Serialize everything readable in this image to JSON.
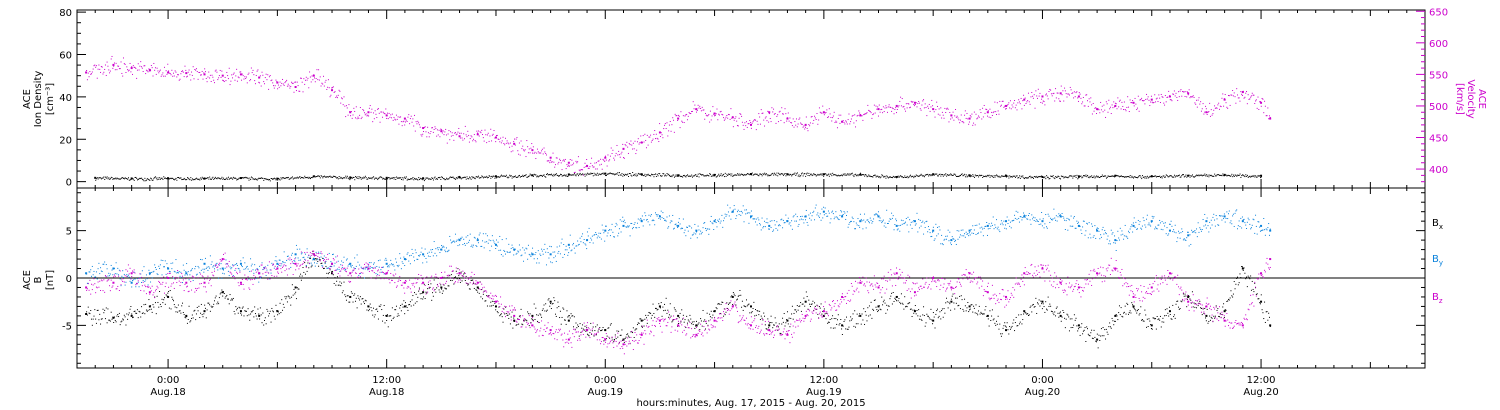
{
  "chart_data": [
    {
      "type": "scatter",
      "panel": "top",
      "ylabel_left": [
        "ACE",
        "Ion Density",
        "[cm⁻³]"
      ],
      "ylabel_right": [
        "ACE",
        "Velocity",
        "[km/s]"
      ],
      "ylim_left": [
        -3,
        81
      ],
      "yticks_left": [
        0,
        20,
        40,
        60,
        80
      ],
      "ylim_right": [
        370,
        652
      ],
      "yticks_right": [
        400,
        450,
        500,
        550,
        600,
        650
      ],
      "grid": false,
      "series": [
        {
          "axis": "left",
          "color": "#000000",
          "x_hours": [
            -4,
            -2,
            0,
            2,
            4,
            6,
            8,
            10,
            12,
            14,
            16,
            18,
            20,
            22,
            24,
            26,
            28,
            30,
            32,
            34,
            36,
            38,
            40,
            42,
            44,
            46,
            48,
            50,
            52,
            54,
            56,
            58,
            60
          ],
          "values": [
            1.8,
            1.5,
            1.6,
            1.5,
            1.7,
            1.4,
            2.5,
            2.0,
            1.8,
            1.6,
            2.0,
            2.5,
            3.0,
            3.4,
            3.8,
            3.5,
            3.0,
            3.2,
            3.6,
            3.5,
            3.5,
            3.3,
            2.2,
            3.5,
            3.0,
            2.8,
            2.2,
            2.5,
            2.8,
            2.5,
            2.8,
            3.2,
            2.8
          ]
        },
        {
          "axis": "right",
          "color": "#cc00cc",
          "x_hours": [
            -4.5,
            -3,
            -2,
            -1,
            0,
            1,
            2,
            3,
            4,
            5,
            6,
            7,
            8,
            9,
            10,
            11,
            12,
            13,
            14,
            15,
            16,
            17,
            18,
            19,
            20,
            21,
            22,
            23,
            24,
            25,
            26,
            27,
            28,
            29,
            30,
            31,
            32,
            33,
            34,
            35,
            36,
            37,
            38,
            39,
            40,
            41,
            42,
            43,
            44,
            45,
            46,
            47,
            48,
            49,
            50,
            51,
            52,
            53,
            54,
            55,
            56,
            57,
            58,
            59,
            60,
            60.5
          ],
          "values": [
            553,
            565,
            560,
            557,
            553,
            552,
            550,
            548,
            550,
            545,
            537,
            530,
            548,
            525,
            490,
            490,
            485,
            480,
            465,
            460,
            452,
            455,
            450,
            440,
            430,
            418,
            410,
            405,
            418,
            432,
            442,
            458,
            480,
            495,
            488,
            482,
            470,
            490,
            480,
            470,
            490,
            475,
            485,
            495,
            500,
            505,
            495,
            485,
            480,
            490,
            500,
            510,
            515,
            520,
            515,
            495,
            500,
            505,
            510,
            515,
            520,
            490,
            510,
            522,
            505,
            480
          ]
        }
      ]
    },
    {
      "type": "scatter",
      "panel": "bottom",
      "ylabel_left": [
        "ACE",
        "B",
        "[nT]"
      ],
      "ylim": [
        -9.5,
        9.5
      ],
      "yticks": [
        -5,
        0,
        5
      ],
      "zero_line": true,
      "legend": "right",
      "grid": false,
      "series": [
        {
          "name": "Bx",
          "color": "#000000",
          "x_hours": [
            -4.5,
            -3,
            -2,
            -1,
            0,
            1,
            2,
            3,
            4,
            5,
            6,
            7,
            8,
            9,
            10,
            11,
            12,
            13,
            14,
            15,
            16,
            17,
            18,
            19,
            20,
            21,
            22,
            23,
            24,
            25,
            26,
            27,
            28,
            29,
            30,
            31,
            32,
            33,
            34,
            35,
            36,
            37,
            38,
            39,
            40,
            41,
            42,
            43,
            44,
            45,
            46,
            47,
            48,
            49,
            50,
            51,
            52,
            53,
            54,
            55,
            56,
            57,
            58,
            59,
            60,
            60.5
          ],
          "values": [
            -3.8,
            -4.2,
            -4.0,
            -3.0,
            -2.0,
            -4.0,
            -3.5,
            -1.5,
            -3.5,
            -4.0,
            -3.5,
            -1.0,
            2.5,
            0.5,
            -2.0,
            -3.0,
            -4.0,
            -3.0,
            -1.5,
            -1.0,
            0.5,
            -1.0,
            -3.0,
            -4.5,
            -4.0,
            -2.5,
            -4.5,
            -5.5,
            -5.5,
            -6.5,
            -4.5,
            -3.0,
            -4.0,
            -5.0,
            -3.5,
            -2.0,
            -3.0,
            -5.0,
            -4.5,
            -2.5,
            -4.0,
            -5.0,
            -4.0,
            -3.0,
            -2.0,
            -3.5,
            -4.5,
            -2.5,
            -3.0,
            -4.0,
            -5.5,
            -3.5,
            -2.5,
            -4.0,
            -5.0,
            -6.5,
            -4.0,
            -3.0,
            -5.0,
            -3.5,
            -2.0,
            -4.0,
            -3.5,
            1.0,
            -2.5,
            -5.0
          ]
        },
        {
          "name": "By",
          "color": "#0a82dc",
          "x_hours": [
            -4.5,
            -3,
            -2,
            -1,
            0,
            1,
            2,
            3,
            4,
            5,
            6,
            7,
            8,
            9,
            10,
            11,
            12,
            13,
            14,
            15,
            16,
            17,
            18,
            19,
            20,
            21,
            22,
            23,
            24,
            25,
            26,
            27,
            28,
            29,
            30,
            31,
            32,
            33,
            34,
            35,
            36,
            37,
            38,
            39,
            40,
            41,
            42,
            43,
            44,
            45,
            46,
            47,
            48,
            49,
            50,
            51,
            52,
            53,
            54,
            55,
            56,
            57,
            58,
            59,
            60,
            60.5
          ],
          "values": [
            0.5,
            1.0,
            -0.5,
            0.5,
            1.0,
            0.5,
            1.5,
            1.0,
            1.5,
            0.5,
            1.5,
            2.5,
            2.0,
            1.5,
            1.5,
            1.0,
            1.5,
            2.0,
            2.5,
            3.0,
            4.0,
            4.0,
            3.5,
            3.0,
            2.5,
            2.5,
            3.5,
            4.0,
            5.0,
            5.5,
            6.0,
            6.5,
            5.5,
            5.0,
            6.0,
            7.0,
            6.5,
            5.5,
            6.0,
            6.5,
            7.0,
            6.5,
            6.0,
            6.5,
            5.5,
            6.0,
            5.0,
            4.0,
            5.0,
            5.5,
            6.0,
            6.5,
            6.0,
            6.5,
            5.5,
            5.0,
            4.0,
            5.5,
            6.0,
            5.0,
            4.5,
            6.0,
            6.5,
            6.0,
            5.5,
            5.0
          ]
        },
        {
          "name": "Bz",
          "color": "#cc00cc",
          "x_hours": [
            -4.5,
            -3,
            -2,
            -1,
            0,
            1,
            2,
            3,
            4,
            5,
            6,
            7,
            8,
            9,
            10,
            11,
            12,
            13,
            14,
            15,
            16,
            17,
            18,
            19,
            20,
            21,
            22,
            23,
            24,
            25,
            26,
            27,
            28,
            29,
            30,
            31,
            32,
            33,
            34,
            35,
            36,
            37,
            38,
            39,
            40,
            41,
            42,
            43,
            44,
            45,
            46,
            47,
            48,
            49,
            50,
            51,
            52,
            53,
            54,
            55,
            56,
            57,
            58,
            59,
            60,
            60.5
          ],
          "values": [
            -1.0,
            -0.5,
            0.5,
            -1.5,
            0.0,
            -0.5,
            -0.5,
            2.0,
            -0.5,
            0.5,
            1.0,
            1.5,
            2.5,
            1.5,
            0.5,
            1.0,
            0.5,
            -0.5,
            -0.5,
            0.0,
            0.5,
            -0.5,
            -2.5,
            -4.0,
            -5.0,
            -5.5,
            -6.5,
            -5.5,
            -6.5,
            -7.0,
            -6.0,
            -4.5,
            -5.0,
            -6.0,
            -4.5,
            -3.0,
            -5.0,
            -5.5,
            -6.0,
            -4.0,
            -3.5,
            -2.0,
            -0.5,
            -1.0,
            0.5,
            -1.5,
            0.0,
            -1.0,
            0.5,
            -1.5,
            -2.0,
            0.5,
            1.0,
            -0.5,
            -1.0,
            0.5,
            1.0,
            -2.0,
            -1.0,
            0.5,
            -2.5,
            -3.0,
            -4.5,
            -5.0,
            0.5,
            2.0
          ]
        }
      ],
      "legend_entries": [
        {
          "main": "B",
          "sub": "x",
          "color": "#000000"
        },
        {
          "main": "B",
          "sub": "y",
          "color": "#0a82dc"
        },
        {
          "main": "B",
          "sub": "z",
          "color": "#cc00cc"
        }
      ]
    }
  ],
  "x_axis": {
    "xlim_hours": [
      -5,
      69
    ],
    "xlabel": "hours:minutes, Aug. 17, 2015 - Aug. 20, 2015",
    "ticks": [
      {
        "hours": 0,
        "time": "0:00",
        "date": "Aug.18"
      },
      {
        "hours": 12,
        "time": "12:00",
        "date": "Aug.18"
      },
      {
        "hours": 24,
        "time": "0:00",
        "date": "Aug.19"
      },
      {
        "hours": 36,
        "time": "12:00",
        "date": "Aug.19"
      },
      {
        "hours": 48,
        "time": "0:00",
        "date": "Aug.20"
      },
      {
        "hours": 60,
        "time": "12:00",
        "date": "Aug.20"
      }
    ]
  }
}
